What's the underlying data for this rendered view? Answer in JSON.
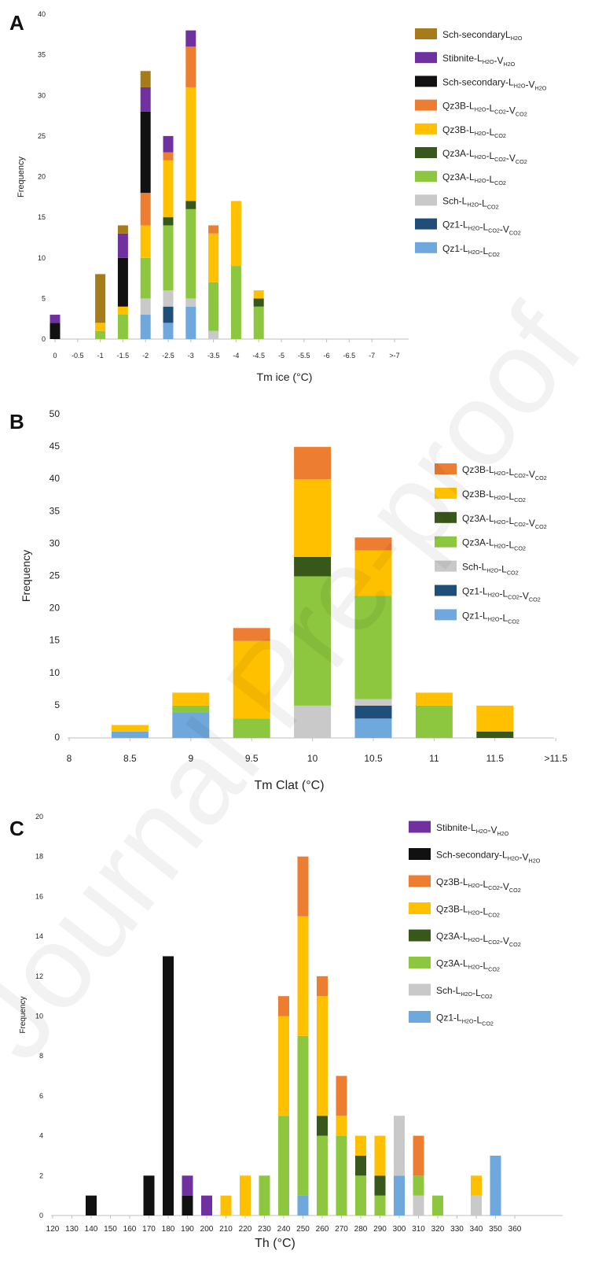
{
  "watermark": "Journal Pre-proof",
  "colors": {
    "Qz1-L-L": "#6fa8dc",
    "Qz1-L-L-V": "#1f4e79",
    "Sch-L-L": "#c9c9c9",
    "Qz3A-L-L": "#8dc63f",
    "Qz3A-L-L-V": "#38571a",
    "Qz3B-L-L": "#ffc000",
    "Qz3B-L-L-V": "#ed7d31",
    "Sch-sec-L-V": "#111111",
    "Stibnite-L-V": "#7030a0",
    "Sch-sec-L": "#a67c1a"
  },
  "chart_data": [
    {
      "panel_letter": "A",
      "type": "bar",
      "stacked": true,
      "xlabel": "Tm ice (°C)",
      "ylabel": "Frequency",
      "ylim": [
        0,
        40
      ],
      "yticks": [
        0,
        5,
        10,
        15,
        20,
        25,
        30,
        35,
        40
      ],
      "categories": [
        "0",
        "-0.5",
        "-1",
        "-1.5",
        "-2",
        "-2.5",
        "-3",
        "-3.5",
        "-4",
        "-4.5",
        "-5",
        "-5.5",
        "-6",
        "-6.5",
        "-7",
        ">-7"
      ],
      "legend_position": "right",
      "series": [
        {
          "name": "Qz1-L H2O -L CO2",
          "color_key": "Qz1-L-L",
          "values": [
            0,
            0,
            0,
            0,
            3,
            2,
            4,
            0,
            0,
            0,
            0,
            0,
            0,
            0,
            0,
            0
          ]
        },
        {
          "name": "Qz1-L H2O -L CO2 -V CO2",
          "color_key": "Qz1-L-L-V",
          "values": [
            0,
            0,
            0,
            0,
            0,
            2,
            0,
            0,
            0,
            0,
            0,
            0,
            0,
            0,
            0,
            0
          ]
        },
        {
          "name": "Sch-L H2O -L CO2",
          "color_key": "Sch-L-L",
          "values": [
            0,
            0,
            0,
            0,
            2,
            2,
            1,
            1,
            0,
            0,
            0,
            0,
            0,
            0,
            0,
            0
          ]
        },
        {
          "name": "Qz3A-L H2O -L CO2",
          "color_key": "Qz3A-L-L",
          "values": [
            0,
            0,
            1,
            3,
            5,
            8,
            11,
            6,
            9,
            4,
            0,
            0,
            0,
            0,
            0,
            0
          ]
        },
        {
          "name": "Qz3A-L H2O -L CO2 -V CO2",
          "color_key": "Qz3A-L-L-V",
          "values": [
            0,
            0,
            0,
            0,
            0,
            1,
            1,
            0,
            0,
            1,
            0,
            0,
            0,
            0,
            0,
            0
          ]
        },
        {
          "name": "Qz3B-L H2O -L CO2",
          "color_key": "Qz3B-L-L",
          "values": [
            0,
            0,
            1,
            1,
            4,
            7,
            14,
            6,
            8,
            1,
            0,
            0,
            0,
            0,
            0,
            0
          ]
        },
        {
          "name": "Qz3B-L H2O -L CO2 -V CO2",
          "color_key": "Qz3B-L-L-V",
          "values": [
            0,
            0,
            0,
            0,
            4,
            1,
            5,
            1,
            0,
            0,
            0,
            0,
            0,
            0,
            0,
            0
          ]
        },
        {
          "name": "Sch-secondary-L H2O -V H2O",
          "color_key": "Sch-sec-L-V",
          "values": [
            2,
            0,
            0,
            6,
            10,
            0,
            0,
            0,
            0,
            0,
            0,
            0,
            0,
            0,
            0,
            0
          ]
        },
        {
          "name": "Stibnite-L H2O -V H2O",
          "color_key": "Stibnite-L-V",
          "values": [
            1,
            0,
            0,
            3,
            3,
            2,
            2,
            0,
            0,
            0,
            0,
            0,
            0,
            0,
            0,
            0
          ]
        },
        {
          "name": "Sch-secondary L H2O",
          "color_key": "Sch-sec-L",
          "values": [
            0,
            0,
            6,
            1,
            2,
            0,
            0,
            0,
            0,
            0,
            0,
            0,
            0,
            0,
            0,
            0
          ]
        }
      ]
    },
    {
      "panel_letter": "B",
      "type": "bar",
      "stacked": true,
      "xlabel": "Tm Clat (°C)",
      "ylabel": "Frequency",
      "ylim": [
        0,
        50
      ],
      "yticks": [
        0,
        5,
        10,
        15,
        20,
        25,
        30,
        35,
        40,
        45,
        50
      ],
      "categories": [
        "8",
        "8.5",
        "9",
        "9.5",
        "10",
        "10.5",
        "11",
        "11.5",
        ">11.5"
      ],
      "legend_position": "right",
      "series": [
        {
          "name": "Qz1-L H2O -L CO2",
          "color_key": "Qz1-L-L",
          "values": [
            0,
            1,
            4,
            0,
            0,
            3,
            0,
            0,
            0
          ]
        },
        {
          "name": "Qz1-L H2O -L CO2 -V CO2",
          "color_key": "Qz1-L-L-V",
          "values": [
            0,
            0,
            0,
            0,
            0,
            2,
            0,
            0,
            0
          ]
        },
        {
          "name": "Sch-L H2O -L CO2",
          "color_key": "Sch-L-L",
          "values": [
            0,
            0,
            0,
            0,
            5,
            1,
            0,
            0,
            0
          ]
        },
        {
          "name": "Qz3A-L H2O -L CO2",
          "color_key": "Qz3A-L-L",
          "values": [
            0,
            0,
            1,
            3,
            20,
            16,
            5,
            0,
            0
          ]
        },
        {
          "name": "Qz3A-L H2O -L CO2 -V CO2",
          "color_key": "Qz3A-L-L-V",
          "values": [
            0,
            0,
            0,
            0,
            3,
            0,
            0,
            1,
            0
          ]
        },
        {
          "name": "Qz3B-L H2O -L CO2",
          "color_key": "Qz3B-L-L",
          "values": [
            0,
            1,
            2,
            12,
            12,
            7,
            2,
            4,
            0
          ]
        },
        {
          "name": "Qz3B-L H2O -L CO2 -V CO2",
          "color_key": "Qz3B-L-L-V",
          "values": [
            0,
            0,
            0,
            2,
            5,
            2,
            0,
            0,
            0
          ]
        }
      ]
    },
    {
      "panel_letter": "C",
      "type": "bar",
      "stacked": true,
      "xlabel": "Th (°C)",
      "ylabel": "Frequency",
      "ylim": [
        0,
        20
      ],
      "yticks": [
        0,
        2,
        4,
        6,
        8,
        10,
        12,
        14,
        16,
        18,
        20
      ],
      "categories": [
        "120",
        "130",
        "140",
        "150",
        "160",
        "170",
        "180",
        "190",
        "200",
        "210",
        "220",
        "230",
        "240",
        "250",
        "260",
        "270",
        "280",
        "290",
        "300",
        "310",
        "320",
        "330",
        "340",
        "350",
        "360"
      ],
      "legend_position": "right",
      "series": [
        {
          "name": "Qz1-L H2O -L CO2",
          "color_key": "Qz1-L-L",
          "values": [
            0,
            0,
            0,
            0,
            0,
            0,
            0,
            0,
            0,
            0,
            0,
            0,
            0,
            1,
            0,
            0,
            0,
            0,
            2,
            0,
            0,
            0,
            0,
            3,
            0
          ]
        },
        {
          "name": "Sch-L H2O -L CO2",
          "color_key": "Sch-L-L",
          "values": [
            0,
            0,
            0,
            0,
            0,
            0,
            0,
            0,
            0,
            0,
            0,
            0,
            0,
            0,
            0,
            0,
            0,
            0,
            3,
            1,
            0,
            0,
            1,
            0,
            0
          ]
        },
        {
          "name": "Qz3A-L H2O -L CO2",
          "color_key": "Qz3A-L-L",
          "values": [
            0,
            0,
            0,
            0,
            0,
            0,
            0,
            0,
            0,
            0,
            0,
            2,
            5,
            8,
            4,
            4,
            2,
            1,
            0,
            1,
            1,
            0,
            0,
            0,
            0
          ]
        },
        {
          "name": "Qz3A-L H2O -L CO2 -V CO2",
          "color_key": "Qz3A-L-L-V",
          "values": [
            0,
            0,
            0,
            0,
            0,
            0,
            0,
            0,
            0,
            0,
            0,
            0,
            0,
            0,
            1,
            0,
            1,
            1,
            0,
            0,
            0,
            0,
            0,
            0,
            0
          ]
        },
        {
          "name": "Qz3B-L H2O -L CO2",
          "color_key": "Qz3B-L-L",
          "values": [
            0,
            0,
            0,
            0,
            0,
            0,
            0,
            0,
            0,
            1,
            2,
            0,
            5,
            6,
            6,
            1,
            1,
            2,
            0,
            0,
            0,
            0,
            1,
            0,
            0
          ]
        },
        {
          "name": "Qz3B-L H2O -L CO2 -V CO2",
          "color_key": "Qz3B-L-L-V",
          "values": [
            0,
            0,
            0,
            0,
            0,
            0,
            0,
            0,
            0,
            0,
            0,
            0,
            1,
            3,
            1,
            2,
            0,
            0,
            0,
            2,
            0,
            0,
            0,
            0,
            0
          ]
        },
        {
          "name": "Sch-secondary-L H2O -V H2O",
          "color_key": "Sch-sec-L-V",
          "values": [
            0,
            0,
            1,
            0,
            0,
            2,
            13,
            1,
            0,
            0,
            0,
            0,
            0,
            0,
            0,
            0,
            0,
            0,
            0,
            0,
            0,
            0,
            0,
            0,
            0
          ]
        },
        {
          "name": "Stibnite-L H2O -V H2O",
          "color_key": "Stibnite-L-V",
          "values": [
            0,
            0,
            0,
            0,
            0,
            0,
            0,
            1,
            1,
            0,
            0,
            0,
            0,
            0,
            0,
            0,
            0,
            0,
            0,
            0,
            0,
            0,
            0,
            0,
            0
          ]
        }
      ]
    }
  ]
}
